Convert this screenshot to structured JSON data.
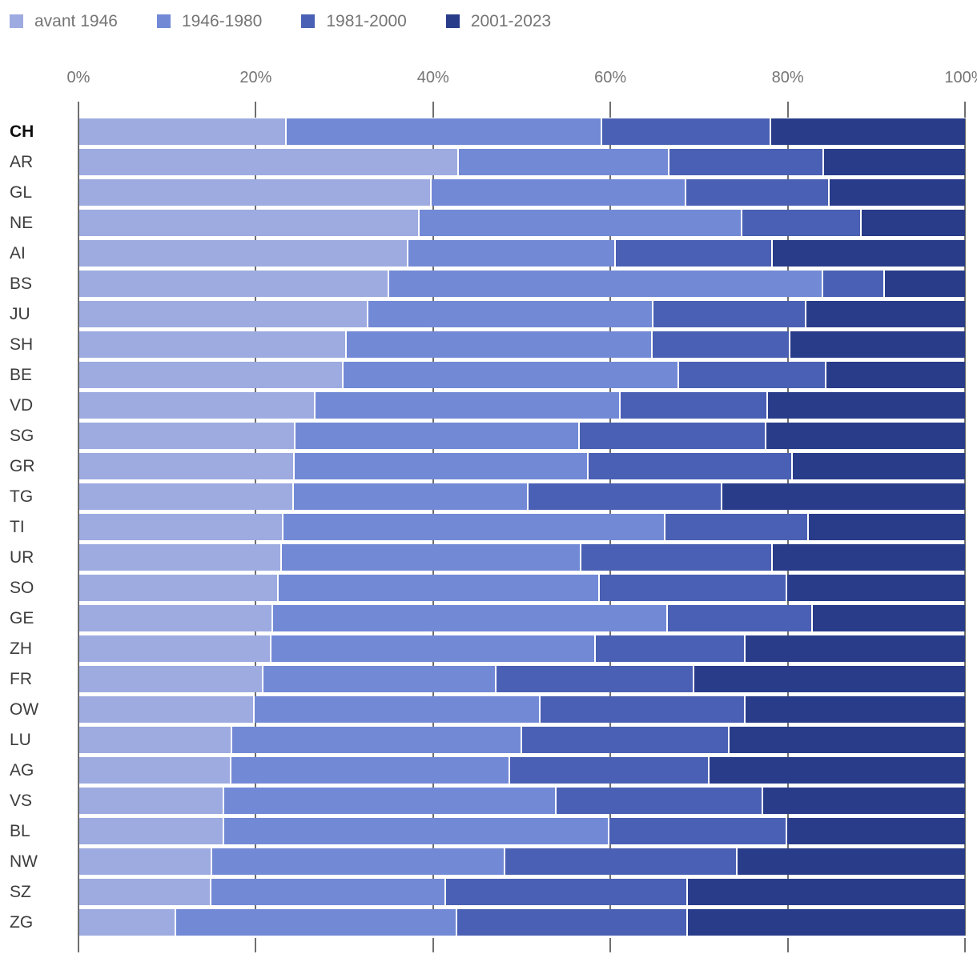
{
  "chart_data": {
    "type": "bar",
    "orientation": "horizontal",
    "stacked": true,
    "stack_unit": "percent",
    "title": "",
    "xlabel": "",
    "ylabel": "",
    "xlim": [
      0,
      100
    ],
    "x_tick_labels": [
      "0%",
      "20%",
      "40%",
      "60%",
      "80%",
      "100%"
    ],
    "x_tick_values": [
      0,
      20,
      40,
      60,
      80,
      100
    ],
    "legend_position": "top",
    "grid": "vertical",
    "highlighted_category": "CH",
    "categories": [
      "CH",
      "AR",
      "GL",
      "NE",
      "AI",
      "BS",
      "JU",
      "SH",
      "BE",
      "VD",
      "SG",
      "GR",
      "TG",
      "TI",
      "UR",
      "SO",
      "GE",
      "ZH",
      "FR",
      "OW",
      "LU",
      "AG",
      "VS",
      "BL",
      "NW",
      "SZ",
      "ZG"
    ],
    "series": [
      {
        "name": "avant 1946",
        "color": "#9dabe0",
        "values": [
          23.4,
          42.9,
          39.8,
          38.4,
          37.2,
          35.0,
          32.6,
          30.2,
          29.8,
          26.7,
          24.4,
          24.3,
          24.2,
          23.1,
          22.9,
          22.5,
          21.9,
          21.7,
          20.8,
          19.8,
          17.3,
          17.2,
          16.4,
          16.4,
          15.0,
          14.9,
          10.9
        ]
      },
      {
        "name": "1946-1980",
        "color": "#7289d6",
        "values": [
          35.6,
          23.7,
          28.7,
          36.5,
          23.4,
          49.0,
          32.2,
          34.5,
          37.9,
          34.4,
          32.1,
          33.2,
          26.5,
          43.1,
          33.8,
          36.3,
          44.6,
          36.6,
          26.3,
          32.3,
          32.7,
          31.4,
          37.5,
          43.5,
          33.1,
          26.5,
          31.8
        ]
      },
      {
        "name": "1981-2000",
        "color": "#4a60b4",
        "values": [
          19.1,
          17.5,
          16.2,
          13.4,
          17.7,
          7.0,
          17.3,
          15.6,
          16.7,
          16.7,
          21.1,
          23.1,
          21.9,
          16.2,
          21.6,
          21.1,
          16.3,
          16.9,
          22.3,
          23.1,
          23.4,
          22.6,
          23.3,
          20.0,
          26.2,
          27.3,
          26.0
        ]
      },
      {
        "name": "2001-2023",
        "color": "#293c8a",
        "values": [
          21.9,
          15.9,
          15.3,
          11.7,
          21.7,
          9.0,
          17.9,
          19.7,
          15.6,
          22.2,
          22.4,
          19.4,
          27.4,
          17.6,
          21.7,
          20.1,
          17.2,
          24.8,
          30.6,
          24.8,
          26.6,
          28.8,
          22.8,
          20.1,
          25.7,
          31.3,
          31.3
        ]
      }
    ],
    "axis_color": "#6f6f6f",
    "tick_label_color": "#757575",
    "category_label_color": "#3d3d3d"
  }
}
